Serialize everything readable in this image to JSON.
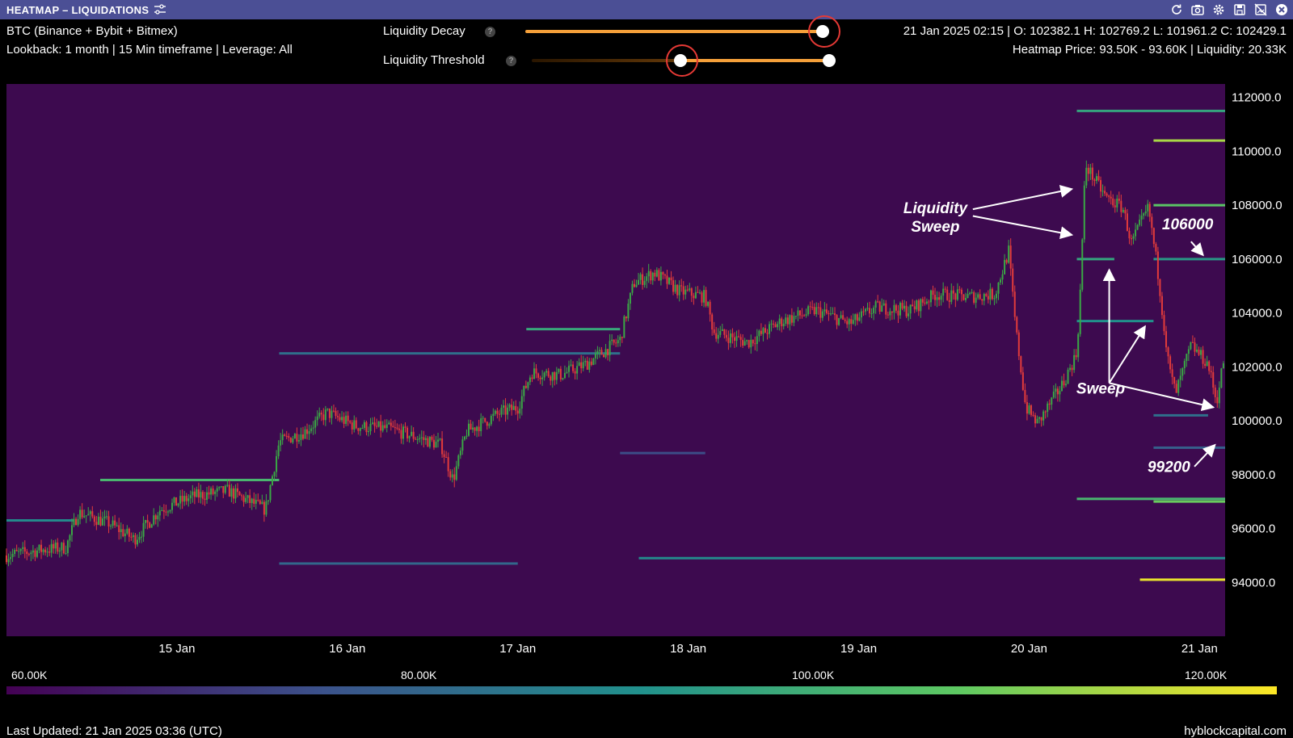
{
  "window": {
    "title": "HEATMAP – LIQUIDATIONS"
  },
  "header": {
    "asset": "BTC (Binance + Bybit + Bitmex)",
    "settings": "Lookback: 1 month | 15 Min timeframe | Leverage: All",
    "ohlc": "21 Jan 2025 02:15 | O: 102382.1 H: 102769.2 L: 101961.2 C: 102429.1",
    "heatmap_info": "Heatmap Price: 93.50K - 93.60K | Liquidity: 20.33K"
  },
  "controls": {
    "decay_label": "Liquidity Decay",
    "threshold_label": "Liquidity Threshold",
    "help_glyph": "?",
    "decay_value": 1.0,
    "threshold_low": 0.5,
    "threshold_high": 1.0
  },
  "colorbar": {
    "labels": [
      "60.00K",
      "80.00K",
      "100.00K",
      "120.00K"
    ],
    "colors": [
      "#440154",
      "#3b528b",
      "#21918c",
      "#5ec962",
      "#fde725"
    ]
  },
  "footer": {
    "updated": "Last Updated: 21 Jan 2025 03:36 (UTC)",
    "brand": "hyblockcapital.com"
  },
  "colors": {
    "titlebar": "#4b4f95",
    "plot_bg": "#3d0a4f",
    "candle_up": "#3aa845",
    "candle_down": "#e23b3b",
    "slider": "#f5a03a",
    "highlight_ring": "#e53935"
  },
  "chart_data": {
    "type": "heatmap",
    "title": "",
    "xlabel": "",
    "ylabel": "",
    "x_ticks": [
      "15 Jan",
      "16 Jan",
      "17 Jan",
      "18 Jan",
      "19 Jan",
      "20 Jan",
      "21 Jan"
    ],
    "y_ticks": [
      112000,
      110000,
      108000,
      106000,
      104000,
      102000,
      100000,
      98000,
      96000,
      94000
    ],
    "y_tick_labels": [
      "112000.0",
      "110000.0",
      "108000.0",
      "106000.0",
      "104000.0",
      "102000.0",
      "100000.0",
      "98000.0",
      "96000.0",
      "94000.0"
    ],
    "ylim": [
      92000,
      112500
    ],
    "xlim": [
      14.0,
      21.15
    ],
    "price_path": [
      [
        14.0,
        95000
      ],
      [
        14.2,
        95200
      ],
      [
        14.35,
        95300
      ],
      [
        14.42,
        96600
      ],
      [
        14.6,
        96200
      ],
      [
        14.75,
        95600
      ],
      [
        14.9,
        96700
      ],
      [
        15.1,
        97200
      ],
      [
        15.3,
        97400
      ],
      [
        15.52,
        96700
      ],
      [
        15.6,
        99200
      ],
      [
        15.75,
        99600
      ],
      [
        15.88,
        100300
      ],
      [
        16.05,
        99800
      ],
      [
        16.25,
        99700
      ],
      [
        16.4,
        99400
      ],
      [
        16.55,
        99100
      ],
      [
        16.62,
        97800
      ],
      [
        16.7,
        99600
      ],
      [
        16.9,
        100300
      ],
      [
        17.0,
        100500
      ],
      [
        17.08,
        101800
      ],
      [
        17.25,
        101700
      ],
      [
        17.4,
        102100
      ],
      [
        17.6,
        103000
      ],
      [
        17.68,
        105100
      ],
      [
        17.8,
        105500
      ],
      [
        17.95,
        104800
      ],
      [
        18.1,
        104600
      ],
      [
        18.15,
        103300
      ],
      [
        18.35,
        102900
      ],
      [
        18.55,
        103700
      ],
      [
        18.75,
        104100
      ],
      [
        18.95,
        103600
      ],
      [
        19.1,
        104200
      ],
      [
        19.3,
        104100
      ],
      [
        19.45,
        104700
      ],
      [
        19.65,
        104600
      ],
      [
        19.8,
        104700
      ],
      [
        19.88,
        106300
      ],
      [
        19.92,
        103500
      ],
      [
        19.98,
        100500
      ],
      [
        20.05,
        99900
      ],
      [
        20.2,
        101400
      ],
      [
        20.28,
        102500
      ],
      [
        20.3,
        104800
      ],
      [
        20.33,
        109500
      ],
      [
        20.45,
        108300
      ],
      [
        20.55,
        107900
      ],
      [
        20.6,
        106600
      ],
      [
        20.7,
        107900
      ],
      [
        20.75,
        105800
      ],
      [
        20.82,
        102000
      ],
      [
        20.86,
        101000
      ],
      [
        20.95,
        102800
      ],
      [
        21.05,
        102100
      ],
      [
        21.1,
        100700
      ],
      [
        21.15,
        102600
      ]
    ],
    "liquidity_levels": [
      {
        "price": 111500,
        "x_start": 20.28,
        "x_end": 21.15,
        "value": 95000
      },
      {
        "price": 110400,
        "x_start": 20.73,
        "x_end": 21.15,
        "value": 112000
      },
      {
        "price": 108000,
        "x_start": 20.73,
        "x_end": 21.15,
        "value": 104000
      },
      {
        "price": 106000,
        "x_start": 20.28,
        "x_end": 20.5,
        "value": 95000
      },
      {
        "price": 106000,
        "x_start": 20.73,
        "x_end": 21.15,
        "value": 92000
      },
      {
        "price": 103700,
        "x_start": 20.28,
        "x_end": 20.73,
        "value": 90000
      },
      {
        "price": 103400,
        "x_start": 17.05,
        "x_end": 17.6,
        "value": 96000
      },
      {
        "price": 102500,
        "x_start": 15.6,
        "x_end": 17.6,
        "value": 82000
      },
      {
        "price": 100200,
        "x_start": 20.73,
        "x_end": 21.05,
        "value": 82000
      },
      {
        "price": 99000,
        "x_start": 20.73,
        "x_end": 21.15,
        "value": 78000
      },
      {
        "price": 98800,
        "x_start": 17.6,
        "x_end": 18.1,
        "value": 74000
      },
      {
        "price": 97800,
        "x_start": 14.55,
        "x_end": 15.6,
        "value": 100000
      },
      {
        "price": 97100,
        "x_start": 20.28,
        "x_end": 21.15,
        "value": 100000
      },
      {
        "price": 97000,
        "x_start": 20.73,
        "x_end": 21.15,
        "value": 106000
      },
      {
        "price": 96300,
        "x_start": 14.0,
        "x_end": 14.4,
        "value": 88000
      },
      {
        "price": 94700,
        "x_start": 15.6,
        "x_end": 17.0,
        "value": 80000
      },
      {
        "price": 94900,
        "x_start": 17.71,
        "x_end": 21.15,
        "value": 88000
      },
      {
        "price": 94100,
        "x_start": 20.65,
        "x_end": 21.15,
        "value": 118000
      }
    ],
    "annotations": [
      {
        "text": "Liquidity\nSweep",
        "x": 19.45,
        "y": 107700
      },
      {
        "text": "106000",
        "x": 20.93,
        "y": 107100
      },
      {
        "text": "Sweep",
        "x": 20.42,
        "y": 101000
      },
      {
        "text": "99200",
        "x": 20.82,
        "y": 98100
      }
    ]
  }
}
